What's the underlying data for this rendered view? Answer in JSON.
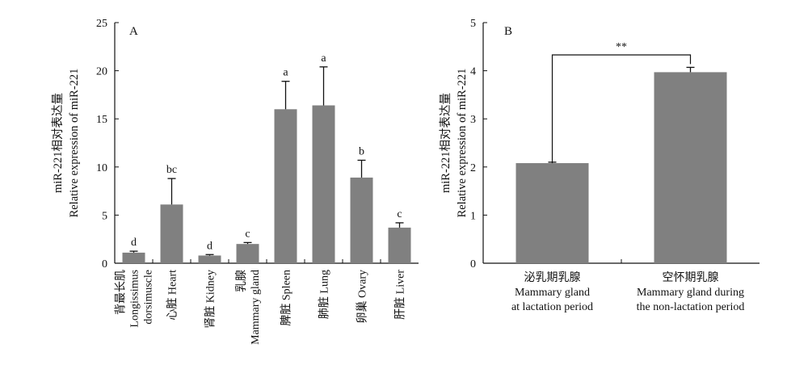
{
  "chart_data": [
    {
      "type": "bar",
      "panel_label": "A",
      "ylabel_lines": [
        "miR-221相对表达量",
        "Relative expression of miR-221"
      ],
      "ylim": [
        0,
        25
      ],
      "yticks": [
        0,
        5,
        10,
        15,
        20,
        25
      ],
      "grid": false,
      "bar_color": "#808080",
      "categories": [
        "背最长肌 Longissimus dorsimuscle",
        "心脏 Heart",
        "肾脏 Kidney",
        "乳腺 Mammary gland",
        "脾脏 Spleen",
        "肺脏 Lung",
        "卵巢 Ovary",
        "肝脏 Liver"
      ],
      "category_label_lines": [
        [
          "背最长肌",
          "Longissimus",
          "dorsimuscle"
        ],
        [
          "心脏 Heart"
        ],
        [
          "肾脏 Kidney"
        ],
        [
          "乳腺",
          "Mammary gland"
        ],
        [
          "脾脏 Spleen"
        ],
        [
          "肺脏 Lung"
        ],
        [
          "卵巢 Ovary"
        ],
        [
          "肝脏 Liver"
        ]
      ],
      "values": [
        1.1,
        6.1,
        0.8,
        2.0,
        16.0,
        16.4,
        8.9,
        3.7
      ],
      "errors": [
        0.15,
        2.7,
        0.1,
        0.15,
        2.9,
        4.0,
        1.8,
        0.5
      ],
      "significance_letters": [
        "d",
        "bc",
        "d",
        "c",
        "a",
        "a",
        "b",
        "c"
      ]
    },
    {
      "type": "bar",
      "panel_label": "B",
      "ylabel_lines": [
        "miR-221相对表达量",
        "Relative expression of miR-221"
      ],
      "ylim": [
        0,
        5
      ],
      "yticks": [
        0,
        1,
        2,
        3,
        4,
        5
      ],
      "grid": false,
      "bar_color": "#808080",
      "categories": [
        "泌乳期乳腺 Mammary gland at lactation period",
        "空怀期乳腺 Mammary gland during the non-lactation period"
      ],
      "category_label_lines": [
        [
          "泌乳期乳腺",
          "Mammary gland",
          "at lactation period"
        ],
        [
          "空怀期乳腺",
          "Mammary gland during",
          "the non-lactation period"
        ]
      ],
      "values": [
        2.08,
        3.97
      ],
      "errors": [
        0.02,
        0.1
      ],
      "significance_bracket": "**"
    }
  ]
}
